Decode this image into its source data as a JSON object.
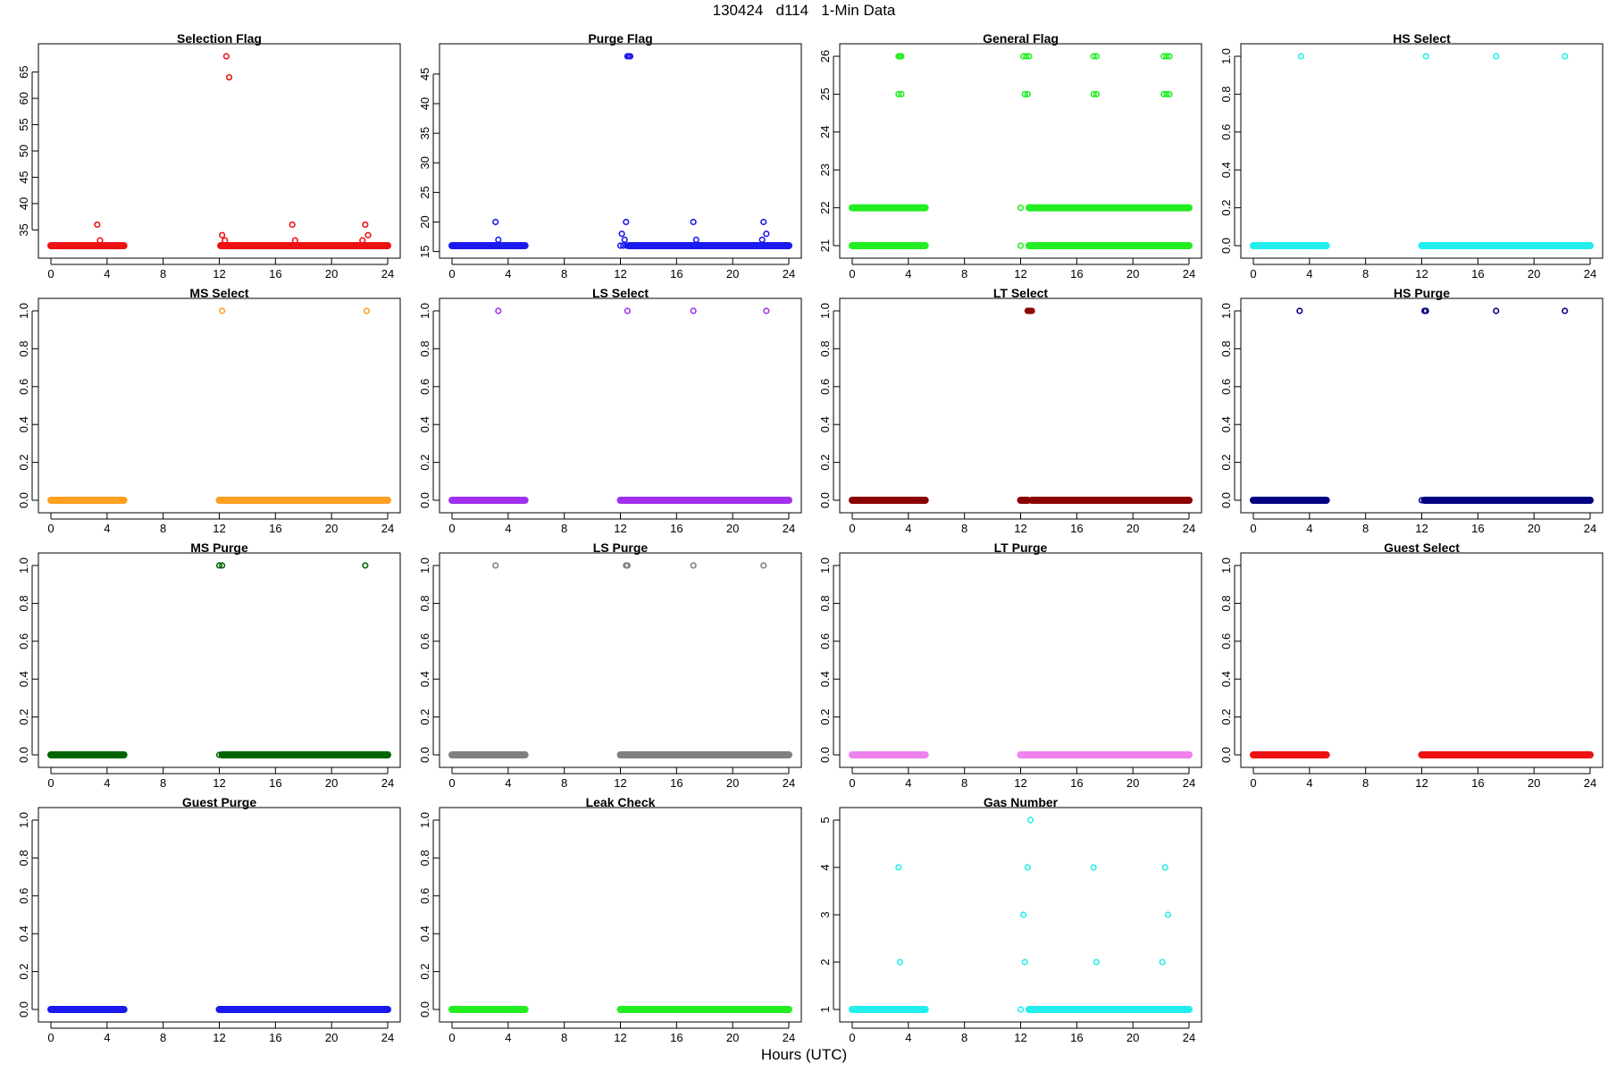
{
  "figure": {
    "title": "130424   d114   1-Min Data",
    "xlabel": "Hours (UTC)"
  },
  "chart_data": [
    {
      "type": "scatter",
      "title": "Selection Flag",
      "color": "#ee1111",
      "xlim": [
        0,
        24
      ],
      "xticks": [
        0,
        4,
        8,
        12,
        16,
        20,
        24
      ],
      "ylim": [
        32,
        68
      ],
      "yticks": [
        35,
        40,
        45,
        50,
        55,
        60,
        65
      ],
      "baseline": 32,
      "baseline_segments": [
        [
          0,
          5.2
        ],
        [
          12.1,
          24
        ]
      ],
      "points": [
        [
          3.3,
          36
        ],
        [
          3.5,
          33
        ],
        [
          12.1,
          32
        ],
        [
          12.2,
          34
        ],
        [
          12.4,
          33
        ],
        [
          12.5,
          68
        ],
        [
          12.7,
          64
        ],
        [
          17.2,
          36
        ],
        [
          17.4,
          33
        ],
        [
          22.2,
          33
        ],
        [
          22.4,
          36
        ],
        [
          22.6,
          34
        ]
      ]
    },
    {
      "type": "scatter",
      "title": "Purge Flag",
      "color": "#1a1aee",
      "xlim": [
        0,
        24
      ],
      "xticks": [
        0,
        4,
        8,
        12,
        16,
        20,
        24
      ],
      "ylim": [
        16,
        48
      ],
      "yticks": [
        15,
        20,
        25,
        30,
        35,
        40,
        45
      ],
      "baseline": 16,
      "baseline_segments": [
        [
          0,
          5.2
        ],
        [
          12.6,
          24
        ]
      ],
      "points": [
        [
          3.1,
          20
        ],
        [
          3.3,
          17
        ],
        [
          12.0,
          16
        ],
        [
          12.1,
          18
        ],
        [
          12.2,
          16
        ],
        [
          12.3,
          17
        ],
        [
          12.4,
          20
        ],
        [
          12.45,
          16
        ],
        [
          12.5,
          48
        ],
        [
          12.6,
          48
        ],
        [
          12.7,
          48
        ],
        [
          17.2,
          20
        ],
        [
          17.4,
          17
        ],
        [
          22.1,
          17
        ],
        [
          22.2,
          20
        ],
        [
          22.4,
          18
        ]
      ]
    },
    {
      "type": "scatter",
      "title": "General Flag",
      "color": "#22ee22",
      "xlim": [
        0,
        24
      ],
      "xticks": [
        0,
        4,
        8,
        12,
        16,
        20,
        24
      ],
      "ylim": [
        21,
        26
      ],
      "yticks": [
        21,
        22,
        23,
        24,
        25,
        26
      ],
      "baseline": 21,
      "baseline_segments": [
        [
          0,
          5.2
        ],
        [
          12.6,
          24
        ]
      ],
      "bands": [
        {
          "y": 22,
          "segments": [
            [
              0,
              5.2
            ],
            [
              12.6,
              24
            ]
          ]
        }
      ],
      "points": [
        [
          3.3,
          26
        ],
        [
          3.4,
          26
        ],
        [
          3.5,
          26
        ],
        [
          3.3,
          25
        ],
        [
          3.5,
          25
        ],
        [
          12.0,
          22
        ],
        [
          12.0,
          21
        ],
        [
          12.2,
          26
        ],
        [
          12.4,
          26
        ],
        [
          12.6,
          26
        ],
        [
          12.3,
          25
        ],
        [
          12.5,
          25
        ],
        [
          17.2,
          26
        ],
        [
          17.4,
          26
        ],
        [
          17.2,
          25
        ],
        [
          17.4,
          25
        ],
        [
          22.2,
          26
        ],
        [
          22.4,
          26
        ],
        [
          22.6,
          26
        ],
        [
          22.2,
          25
        ],
        [
          22.4,
          25
        ],
        [
          22.6,
          25
        ]
      ]
    },
    {
      "type": "scatter",
      "title": "HS Select",
      "color": "#22eeee",
      "xlim": [
        0,
        24
      ],
      "xticks": [
        0,
        4,
        8,
        12,
        16,
        20,
        24
      ],
      "ylim": [
        0,
        1
      ],
      "yticks": [
        0.0,
        0.2,
        0.4,
        0.6,
        0.8,
        1.0
      ],
      "baseline": 0,
      "baseline_segments": [
        [
          0,
          5.2
        ],
        [
          12,
          24
        ]
      ],
      "points": [
        [
          3.4,
          1
        ],
        [
          12.3,
          1
        ],
        [
          17.3,
          1
        ],
        [
          22.2,
          1
        ]
      ]
    },
    {
      "type": "scatter",
      "title": "MS Select",
      "color": "#ffa020",
      "xlim": [
        0,
        24
      ],
      "xticks": [
        0,
        4,
        8,
        12,
        16,
        20,
        24
      ],
      "ylim": [
        0,
        1
      ],
      "yticks": [
        0.0,
        0.2,
        0.4,
        0.6,
        0.8,
        1.0
      ],
      "baseline": 0,
      "baseline_segments": [
        [
          0,
          5.2
        ],
        [
          12,
          24
        ]
      ],
      "points": [
        [
          12.2,
          1
        ],
        [
          22.5,
          1
        ]
      ]
    },
    {
      "type": "scatter",
      "title": "LS Select",
      "color": "#a030ee",
      "xlim": [
        0,
        24
      ],
      "xticks": [
        0,
        4,
        8,
        12,
        16,
        20,
        24
      ],
      "ylim": [
        0,
        1
      ],
      "yticks": [
        0.0,
        0.2,
        0.4,
        0.6,
        0.8,
        1.0
      ],
      "baseline": 0,
      "baseline_segments": [
        [
          0,
          5.2
        ],
        [
          12,
          24
        ]
      ],
      "points": [
        [
          3.3,
          1
        ],
        [
          12.5,
          1
        ],
        [
          17.2,
          1
        ],
        [
          22.4,
          1
        ]
      ]
    },
    {
      "type": "scatter",
      "title": "LT Select",
      "color": "#8b0000",
      "xlim": [
        0,
        24
      ],
      "xticks": [
        0,
        4,
        8,
        12,
        16,
        20,
        24
      ],
      "ylim": [
        0,
        1
      ],
      "yticks": [
        0.0,
        0.2,
        0.4,
        0.6,
        0.8,
        1.0
      ],
      "baseline": 0,
      "baseline_segments": [
        [
          0,
          5.2
        ],
        [
          12.0,
          12.5
        ],
        [
          12.8,
          24
        ]
      ],
      "points": [
        [
          12.5,
          1
        ],
        [
          12.6,
          1
        ],
        [
          12.7,
          1
        ],
        [
          12.8,
          1
        ]
      ]
    },
    {
      "type": "scatter",
      "title": "HS Purge",
      "color": "#000080",
      "xlim": [
        0,
        24
      ],
      "xticks": [
        0,
        4,
        8,
        12,
        16,
        20,
        24
      ],
      "ylim": [
        0,
        1
      ],
      "yticks": [
        0.0,
        0.2,
        0.4,
        0.6,
        0.8,
        1.0
      ],
      "baseline": 0,
      "baseline_segments": [
        [
          0,
          5.2
        ],
        [
          12.2,
          24
        ]
      ],
      "points": [
        [
          3.3,
          1
        ],
        [
          12.2,
          1
        ],
        [
          12.3,
          1
        ],
        [
          17.3,
          1
        ],
        [
          22.2,
          1
        ],
        [
          12.0,
          0
        ]
      ]
    },
    {
      "type": "scatter",
      "title": "MS Purge",
      "color": "#006400",
      "xlim": [
        0,
        24
      ],
      "xticks": [
        0,
        4,
        8,
        12,
        16,
        20,
        24
      ],
      "ylim": [
        0,
        1
      ],
      "yticks": [
        0.0,
        0.2,
        0.4,
        0.6,
        0.8,
        1.0
      ],
      "baseline": 0,
      "baseline_segments": [
        [
          0,
          5.2
        ],
        [
          12.2,
          24
        ]
      ],
      "points": [
        [
          12.0,
          1
        ],
        [
          12.2,
          1
        ],
        [
          22.4,
          1
        ],
        [
          12.0,
          0
        ]
      ]
    },
    {
      "type": "scatter",
      "title": "LS Purge",
      "color": "#808080",
      "xlim": [
        0,
        24
      ],
      "xticks": [
        0,
        4,
        8,
        12,
        16,
        20,
        24
      ],
      "ylim": [
        0,
        1
      ],
      "yticks": [
        0.0,
        0.2,
        0.4,
        0.6,
        0.8,
        1.0
      ],
      "baseline": 0,
      "baseline_segments": [
        [
          0,
          5.2
        ],
        [
          12,
          24
        ]
      ],
      "points": [
        [
          3.1,
          1
        ],
        [
          12.4,
          1
        ],
        [
          12.5,
          1
        ],
        [
          17.2,
          1
        ],
        [
          22.2,
          1
        ]
      ]
    },
    {
      "type": "scatter",
      "title": "LT Purge",
      "color": "#ee82ee",
      "xlim": [
        0,
        24
      ],
      "xticks": [
        0,
        4,
        8,
        12,
        16,
        20,
        24
      ],
      "ylim": [
        0,
        1
      ],
      "yticks": [
        0.0,
        0.2,
        0.4,
        0.6,
        0.8,
        1.0
      ],
      "baseline": 0,
      "baseline_segments": [
        [
          0,
          5.2
        ],
        [
          12,
          24
        ]
      ],
      "points": []
    },
    {
      "type": "scatter",
      "title": "Guest Select",
      "color": "#ee1111",
      "xlim": [
        0,
        24
      ],
      "xticks": [
        0,
        4,
        8,
        12,
        16,
        20,
        24
      ],
      "ylim": [
        0,
        1
      ],
      "yticks": [
        0.0,
        0.2,
        0.4,
        0.6,
        0.8,
        1.0
      ],
      "baseline": 0,
      "baseline_segments": [
        [
          0,
          5.2
        ],
        [
          12,
          24
        ]
      ],
      "points": []
    },
    {
      "type": "scatter",
      "title": "Guest Purge",
      "color": "#1a1aee",
      "xlim": [
        0,
        24
      ],
      "xticks": [
        0,
        4,
        8,
        12,
        16,
        20,
        24
      ],
      "ylim": [
        0,
        1
      ],
      "yticks": [
        0.0,
        0.2,
        0.4,
        0.6,
        0.8,
        1.0
      ],
      "baseline": 0,
      "baseline_segments": [
        [
          0,
          5.2
        ],
        [
          12,
          24
        ]
      ],
      "points": []
    },
    {
      "type": "scatter",
      "title": "Leak Check",
      "color": "#22ee22",
      "xlim": [
        0,
        24
      ],
      "xticks": [
        0,
        4,
        8,
        12,
        16,
        20,
        24
      ],
      "ylim": [
        0,
        1
      ],
      "yticks": [
        0.0,
        0.2,
        0.4,
        0.6,
        0.8,
        1.0
      ],
      "baseline": 0,
      "baseline_segments": [
        [
          0,
          5.2
        ],
        [
          12,
          24
        ]
      ],
      "points": []
    },
    {
      "type": "scatter",
      "title": "Gas Number",
      "color": "#22eeee",
      "xlim": [
        0,
        24
      ],
      "xticks": [
        0,
        4,
        8,
        12,
        16,
        20,
        24
      ],
      "ylim": [
        1,
        5
      ],
      "yticks": [
        1,
        2,
        3,
        4,
        5
      ],
      "baseline": 1,
      "baseline_segments": [
        [
          0,
          5.2
        ],
        [
          12.6,
          24
        ]
      ],
      "points": [
        [
          3.3,
          4
        ],
        [
          3.4,
          2
        ],
        [
          12.0,
          1
        ],
        [
          12.2,
          3
        ],
        [
          12.3,
          2
        ],
        [
          12.5,
          4
        ],
        [
          12.7,
          5
        ],
        [
          17.2,
          4
        ],
        [
          17.4,
          2
        ],
        [
          22.1,
          2
        ],
        [
          22.3,
          4
        ],
        [
          22.5,
          3
        ]
      ]
    }
  ]
}
